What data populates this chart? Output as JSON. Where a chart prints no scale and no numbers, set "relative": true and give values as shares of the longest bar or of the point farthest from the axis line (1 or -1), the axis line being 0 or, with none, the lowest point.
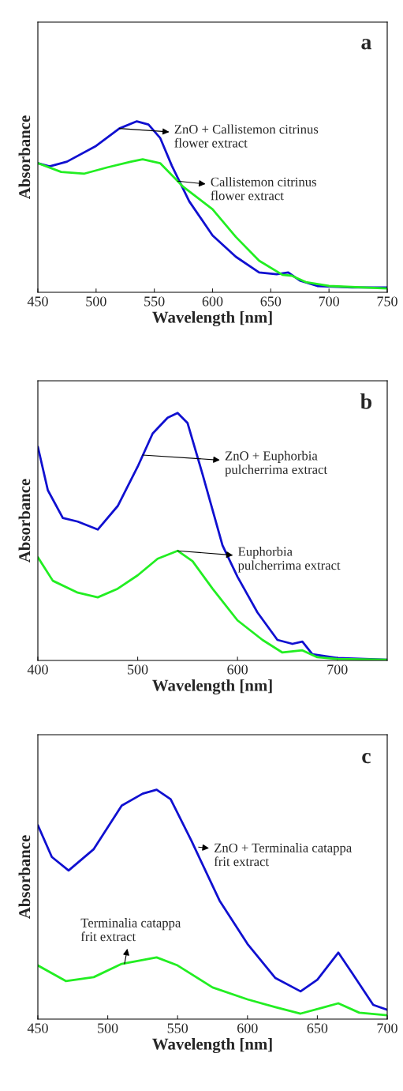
{
  "chart_data": [
    {
      "type": "line",
      "title": "a",
      "xlabel": "Wavelength [nm]",
      "ylabel": "Absorbance",
      "relative": true,
      "xlim": [
        450,
        750
      ],
      "xticks": [
        450,
        500,
        550,
        600,
        650,
        700,
        750
      ],
      "tick_labels": "x",
      "series": [
        {
          "color": "#1010d0",
          "x": [
            450,
            460,
            475,
            500,
            520,
            535,
            545,
            555,
            565,
            580,
            600,
            620,
            640,
            655,
            665,
            675,
            690,
            720,
            750
          ],
          "values": [
            0.755,
            0.736,
            0.764,
            0.856,
            0.958,
            1,
            0.981,
            0.903,
            0.741,
            0.532,
            0.333,
            0.208,
            0.116,
            0.106,
            0.116,
            0.069,
            0.037,
            0.028,
            0.028
          ]
        },
        {
          "color": "#22ee22",
          "x": [
            450,
            470,
            490,
            510,
            530,
            540,
            555,
            575,
            600,
            620,
            640,
            660,
            668,
            680,
            700,
            750
          ],
          "values": [
            0.755,
            0.704,
            0.694,
            0.731,
            0.764,
            0.778,
            0.755,
            0.616,
            0.486,
            0.324,
            0.185,
            0.102,
            0.097,
            0.06,
            0.037,
            0.023
          ]
        }
      ],
      "annotations": [
        {
          "text": "ZnO + Callistemon citrinus\nflower extract",
          "x": 520,
          "y": 0.958
        },
        {
          "text": "Callistemon citrinus\nflower extract",
          "x": 570,
          "y": 0.65
        }
      ]
    },
    {
      "type": "line",
      "title": "b",
      "xlabel": "Wavelength [nm]",
      "ylabel": "Absorbance",
      "relative": true,
      "xlim": [
        400,
        750
      ],
      "xticks": [
        400,
        500,
        600,
        700
      ],
      "tick_labels": "x",
      "series": [
        {
          "color": "#1010d0",
          "x": [
            400,
            410,
            425,
            440,
            460,
            480,
            500,
            515,
            530,
            540,
            550,
            565,
            585,
            600,
            620,
            640,
            655,
            665,
            675,
            700,
            750
          ],
          "values": [
            0.863,
            0.688,
            0.576,
            0.561,
            0.529,
            0.624,
            0.783,
            0.917,
            0.981,
            1,
            0.959,
            0.752,
            0.465,
            0.338,
            0.194,
            0.083,
            0.067,
            0.076,
            0.025,
            0.01,
            0.003
          ]
        },
        {
          "color": "#22ee22",
          "x": [
            400,
            415,
            440,
            460,
            480,
            500,
            520,
            540,
            555,
            575,
            600,
            625,
            645,
            665,
            680,
            700,
            750
          ],
          "values": [
            0.417,
            0.322,
            0.274,
            0.255,
            0.29,
            0.344,
            0.411,
            0.443,
            0.401,
            0.29,
            0.162,
            0.083,
            0.032,
            0.041,
            0.013,
            0.006,
            0.003
          ]
        }
      ],
      "annotations": [
        {
          "text": "ZnO + Euphorbia\npulcherrima extract",
          "x": 505,
          "y": 0.83
        },
        {
          "text": "Euphorbia\npulcherrima extract",
          "x": 540,
          "y": 0.443
        }
      ]
    },
    {
      "type": "line",
      "title": "c",
      "xlabel": "Wavelength [nm]",
      "ylabel": "Absorbance",
      "relative": true,
      "xlim": [
        450,
        700
      ],
      "xticks": [
        450,
        500,
        550,
        600,
        650,
        700
      ],
      "tick_labels": "x",
      "series": [
        {
          "color": "#1010d0",
          "x": [
            450,
            460,
            472,
            490,
            510,
            525,
            535,
            545,
            560,
            580,
            600,
            620,
            638,
            650,
            665,
            675,
            690,
            700
          ],
          "values": [
            0.845,
            0.707,
            0.648,
            0.741,
            0.931,
            0.983,
            1,
            0.959,
            0.776,
            0.517,
            0.328,
            0.179,
            0.121,
            0.172,
            0.29,
            0.2,
            0.062,
            0.041
          ]
        },
        {
          "color": "#22ee22",
          "x": [
            450,
            470,
            490,
            510,
            535,
            550,
            575,
            600,
            620,
            638,
            655,
            665,
            680,
            700
          ],
          "values": [
            0.234,
            0.166,
            0.183,
            0.241,
            0.269,
            0.234,
            0.138,
            0.086,
            0.052,
            0.024,
            0.052,
            0.069,
            0.028,
            0.017
          ]
        }
      ],
      "annotations": [
        {
          "text": "ZnO + Terminalia catappa\nfrit extract",
          "x": 565,
          "y": 0.75
        },
        {
          "text": "Terminalia catappa\nfrit extract",
          "x": 512,
          "y": 0.241
        }
      ]
    }
  ]
}
